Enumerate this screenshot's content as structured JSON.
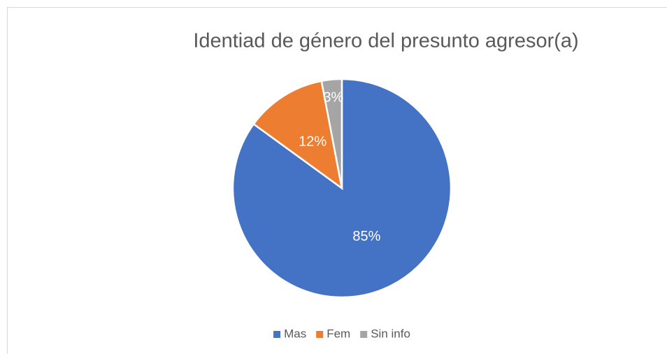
{
  "chart_data": {
    "type": "pie",
    "title": "Identiad de género del presunto agresor(a)",
    "categories": [
      "Mas",
      "Fem",
      "Sin info"
    ],
    "values": [
      85,
      12,
      3
    ],
    "value_labels": [
      "85%",
      "12%",
      "3%"
    ],
    "colors": [
      "#4472c4",
      "#ed7d31",
      "#a5a5a5"
    ],
    "legend": "bottom"
  }
}
